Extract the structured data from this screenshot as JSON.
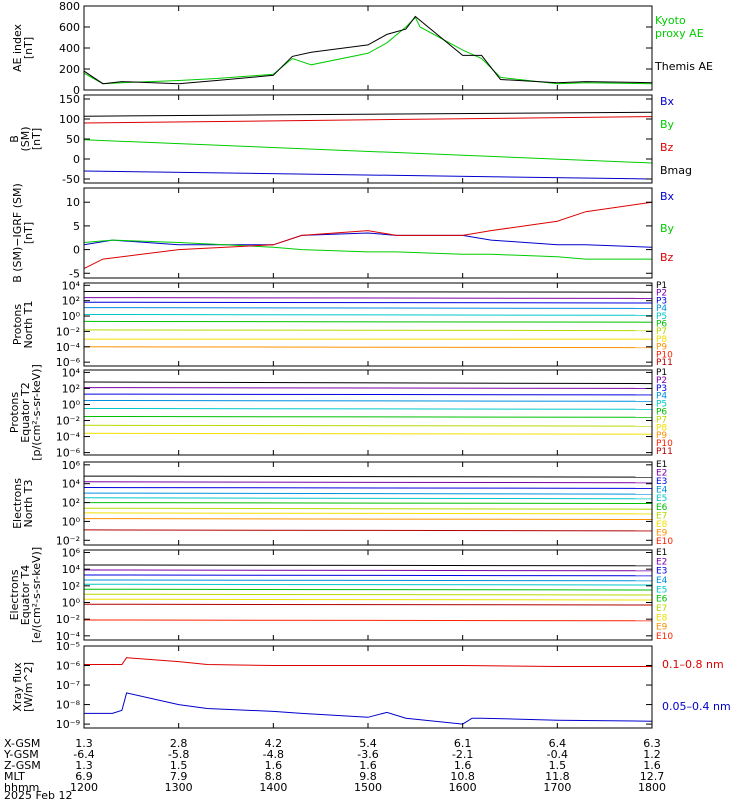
{
  "colors": {
    "black": "#000000",
    "red": "#dd0000",
    "green": "#00cc00",
    "blue": "#0000cc",
    "bands": [
      "#000000",
      "#7a00a8",
      "#0000e0",
      "#0090e0",
      "#00c8c8",
      "#00c000",
      "#b8d800",
      "#f0e000",
      "#ff9000",
      "#ff2000",
      "#b00000"
    ]
  },
  "chart_data": [
    {
      "type": "line",
      "ylabel": [
        "AE index",
        "[nT]"
      ],
      "ylim": [
        0,
        800
      ],
      "yticks": [
        {
          "v": 0,
          "t": "0"
        },
        {
          "v": 200,
          "t": "200"
        },
        {
          "v": 400,
          "t": "400"
        },
        {
          "v": 600,
          "t": "600"
        },
        {
          "v": 800,
          "t": "800"
        }
      ],
      "series": [
        {
          "name": "Kyoto proxy AE",
          "color": "green",
          "x": [
            1200,
            1220,
            1240,
            1300,
            1340,
            1400,
            1420,
            1440,
            1500,
            1520,
            1540,
            1550,
            1555,
            1600,
            1620,
            1640,
            1700,
            1730,
            1800
          ],
          "y": [
            160,
            60,
            70,
            90,
            110,
            150,
            300,
            240,
            350,
            450,
            600,
            690,
            600,
            380,
            300,
            120,
            60,
            70,
            60
          ]
        },
        {
          "name": "Themis AE",
          "color": "black",
          "x": [
            1200,
            1220,
            1240,
            1300,
            1340,
            1400,
            1420,
            1440,
            1500,
            1520,
            1540,
            1550,
            1600,
            1620,
            1640,
            1700,
            1730,
            1800
          ],
          "y": [
            180,
            60,
            80,
            60,
            90,
            140,
            320,
            360,
            430,
            530,
            580,
            700,
            330,
            330,
            100,
            70,
            80,
            70
          ]
        }
      ]
    },
    {
      "type": "line",
      "ylabel": [
        "B",
        "(SM)",
        "[nT]"
      ],
      "ylim": [
        -60,
        160
      ],
      "yticks": [
        {
          "v": -50,
          "t": "-50"
        },
        {
          "v": 0,
          "t": "0"
        },
        {
          "v": 50,
          "t": "50"
        },
        {
          "v": 100,
          "t": "100"
        },
        {
          "v": 150,
          "t": "150"
        }
      ],
      "series": [
        {
          "name": "Bx",
          "color": "blue",
          "x": [
            1200,
            1800
          ],
          "y": [
            -30,
            -50
          ]
        },
        {
          "name": "By",
          "color": "green",
          "x": [
            1200,
            1800
          ],
          "y": [
            48,
            -10
          ]
        },
        {
          "name": "Bz",
          "color": "red",
          "x": [
            1200,
            1800
          ],
          "y": [
            90,
            106
          ]
        },
        {
          "name": "Bmag",
          "color": "black",
          "x": [
            1200,
            1800
          ],
          "y": [
            107,
            117
          ]
        }
      ]
    },
    {
      "type": "line",
      "ylabel": [
        "B (SM)−IGRF (SM)",
        "[nT]"
      ],
      "ylim": [
        -6,
        13
      ],
      "yticks": [
        {
          "v": -5,
          "t": "-5"
        },
        {
          "v": 0,
          "t": "0"
        },
        {
          "v": 5,
          "t": "5"
        },
        {
          "v": 10,
          "t": "10"
        }
      ],
      "series": [
        {
          "name": "Bx",
          "color": "blue",
          "x": [
            1200,
            1230,
            1300,
            1400,
            1430,
            1500,
            1530,
            1600,
            1630,
            1700,
            1730,
            1800
          ],
          "y": [
            1,
            2,
            1,
            1,
            3,
            3.5,
            3,
            3,
            2,
            1,
            1,
            0.5
          ]
        },
        {
          "name": "By",
          "color": "green",
          "x": [
            1200,
            1230,
            1300,
            1400,
            1430,
            1500,
            1530,
            1600,
            1630,
            1700,
            1730,
            1800
          ],
          "y": [
            1.5,
            2,
            1.5,
            0.5,
            0,
            -0.5,
            -0.5,
            -1,
            -1,
            -1.5,
            -2,
            -2
          ]
        },
        {
          "name": "Bz",
          "color": "red",
          "x": [
            1200,
            1220,
            1300,
            1400,
            1430,
            1500,
            1530,
            1600,
            1630,
            1700,
            1730,
            1800
          ],
          "y": [
            -4,
            -2,
            0,
            1,
            3,
            4,
            3,
            3,
            4,
            6,
            8,
            10
          ]
        }
      ]
    },
    {
      "type": "line",
      "log": true,
      "ylabel": [
        "Protons",
        "North T1"
      ],
      "ylim": [
        -6.5,
        4.3
      ],
      "yticks": [
        {
          "v": 4,
          "t": "10⁴"
        },
        {
          "v": 2,
          "t": "10²"
        },
        {
          "v": 0,
          "t": "10⁰"
        },
        {
          "v": -2,
          "t": "10⁻²"
        },
        {
          "v": -4,
          "t": "10⁻⁴"
        },
        {
          "v": -6,
          "t": "10⁻⁶"
        }
      ],
      "series": [
        {
          "name": "P1",
          "color": 0,
          "x": [
            1200,
            1800
          ],
          "y": [
            3.2,
            3.1
          ]
        },
        {
          "name": "P2",
          "color": 1,
          "x": [
            1200,
            1800
          ],
          "y": [
            2.4,
            2.3
          ]
        },
        {
          "name": "P3",
          "color": 2,
          "x": [
            1200,
            1800
          ],
          "y": [
            1.8,
            1.7
          ]
        },
        {
          "name": "P4",
          "color": 3,
          "x": [
            1200,
            1800
          ],
          "y": [
            1.1,
            1.0
          ]
        },
        {
          "name": "P5",
          "color": 4,
          "x": [
            1200,
            1800
          ],
          "y": [
            0.2,
            0.1
          ]
        },
        {
          "name": "P6",
          "color": 5,
          "x": [
            1200,
            1800
          ],
          "y": [
            -0.7,
            -0.8
          ]
        },
        {
          "name": "P7",
          "color": 6,
          "x": [
            1200,
            1800
          ],
          "y": [
            -1.8,
            -1.9
          ]
        },
        {
          "name": "P8",
          "color": 7,
          "x": [
            1200,
            1800
          ],
          "y": [
            -3.0,
            -3.0
          ]
        },
        {
          "name": "P9",
          "color": 8,
          "x": [
            1200,
            1800
          ],
          "y": [
            -4.0,
            -4.1
          ]
        }
      ],
      "legend": [
        "P1",
        "P2",
        "P3",
        "P4",
        "P5",
        "P6",
        "P7",
        "P8",
        "P9",
        "P10",
        "P11"
      ]
    },
    {
      "type": "line",
      "log": true,
      "ylabel": [
        "Protons",
        "Equator T2",
        "[p/(cm²-s-sr-keV)]"
      ],
      "ylim": [
        -6.3,
        4.3
      ],
      "yticks": [
        {
          "v": 4,
          "t": "10⁴"
        },
        {
          "v": 2,
          "t": "10²"
        },
        {
          "v": 0,
          "t": "10⁰"
        },
        {
          "v": -2,
          "t": "10⁻²"
        },
        {
          "v": -4,
          "t": "10⁻⁴"
        },
        {
          "v": -6,
          "t": "10⁻⁶"
        }
      ],
      "series": [
        {
          "name": "P1",
          "color": 0,
          "x": [
            1200,
            1800
          ],
          "y": [
            2.8,
            2.6
          ]
        },
        {
          "name": "P2",
          "color": 1,
          "x": [
            1200,
            1800
          ],
          "y": [
            2.1,
            2.0
          ]
        },
        {
          "name": "P3",
          "color": 2,
          "x": [
            1200,
            1800
          ],
          "y": [
            1.3,
            1.2
          ]
        },
        {
          "name": "P4",
          "color": 3,
          "x": [
            1200,
            1800
          ],
          "y": [
            0.5,
            0.4
          ]
        },
        {
          "name": "P5",
          "color": 4,
          "x": [
            1200,
            1800
          ],
          "y": [
            -0.5,
            -0.6
          ]
        },
        {
          "name": "P6",
          "color": 5,
          "x": [
            1200,
            1800
          ],
          "y": [
            -1.5,
            -1.6
          ]
        },
        {
          "name": "P7",
          "color": 6,
          "x": [
            1200,
            1800
          ],
          "y": [
            -2.6,
            -2.7
          ]
        },
        {
          "name": "P8",
          "color": 7,
          "x": [
            1200,
            1800
          ],
          "y": [
            -3.6,
            -3.7
          ]
        }
      ],
      "legend": [
        "P1",
        "P2",
        "P3",
        "P4",
        "P5",
        "P6",
        "P7",
        "P8",
        "P9",
        "P10",
        "P11"
      ]
    },
    {
      "type": "line",
      "log": true,
      "ylabel": [
        "Electrons",
        "North T3"
      ],
      "ylim": [
        -2.5,
        6.3
      ],
      "yticks": [
        {
          "v": 6,
          "t": "10⁶"
        },
        {
          "v": 4,
          "t": "10⁴"
        },
        {
          "v": 2,
          "t": "10²"
        },
        {
          "v": 0,
          "t": "10⁰"
        },
        {
          "v": -2,
          "t": "10⁻²"
        }
      ],
      "series": [
        {
          "name": "E1",
          "color": 0,
          "x": [
            1200,
            1800
          ],
          "y": [
            4.8,
            4.7
          ]
        },
        {
          "name": "E2",
          "color": 1,
          "x": [
            1200,
            1800
          ],
          "y": [
            4.2,
            4.1
          ]
        },
        {
          "name": "E3",
          "color": 2,
          "x": [
            1200,
            1800
          ],
          "y": [
            3.6,
            3.5
          ]
        },
        {
          "name": "E4",
          "color": 3,
          "x": [
            1200,
            1800
          ],
          "y": [
            3.0,
            2.9
          ]
        },
        {
          "name": "E5",
          "color": 4,
          "x": [
            1200,
            1800
          ],
          "y": [
            2.5,
            2.4
          ]
        },
        {
          "name": "E6",
          "color": 5,
          "x": [
            1200,
            1800
          ],
          "y": [
            2.0,
            1.9
          ]
        },
        {
          "name": "E7",
          "color": 6,
          "x": [
            1200,
            1800
          ],
          "y": [
            1.4,
            1.3
          ]
        },
        {
          "name": "E8",
          "color": 7,
          "x": [
            1200,
            1800
          ],
          "y": [
            0.9,
            0.8
          ]
        },
        {
          "name": "E9",
          "color": 8,
          "x": [
            1200,
            1800
          ],
          "y": [
            0.3,
            0.2
          ]
        },
        {
          "name": "E10",
          "color": 10,
          "x": [
            1200,
            1800
          ],
          "y": [
            -0.9,
            -1.0
          ]
        }
      ],
      "legend": [
        "E1",
        "E2",
        "E3",
        "E4",
        "E5",
        "E6",
        "E7",
        "E8",
        "E9",
        "E10"
      ]
    },
    {
      "type": "line",
      "log": true,
      "ylabel": [
        "Electrons",
        "Equator T4",
        "[e/(cm²-s-sr-keV)]"
      ],
      "ylim": [
        -4.5,
        6.3
      ],
      "yticks": [
        {
          "v": 6,
          "t": "10⁶"
        },
        {
          "v": 4,
          "t": "10⁴"
        },
        {
          "v": 2,
          "t": "10²"
        },
        {
          "v": 0,
          "t": "10⁰"
        },
        {
          "v": -2,
          "t": "10⁻²"
        },
        {
          "v": -4,
          "t": "10⁻⁴"
        }
      ],
      "series": [
        {
          "name": "E1",
          "color": 0,
          "x": [
            1200,
            1800
          ],
          "y": [
            4.5,
            4.4
          ]
        },
        {
          "name": "E2",
          "color": 1,
          "x": [
            1200,
            1800
          ],
          "y": [
            3.9,
            3.8
          ]
        },
        {
          "name": "E3",
          "color": 2,
          "x": [
            1200,
            1800
          ],
          "y": [
            3.3,
            3.2
          ]
        },
        {
          "name": "E4",
          "color": 3,
          "x": [
            1200,
            1800
          ],
          "y": [
            2.7,
            2.6
          ]
        },
        {
          "name": "E5",
          "color": 4,
          "x": [
            1200,
            1800
          ],
          "y": [
            2.2,
            2.1
          ]
        },
        {
          "name": "E6",
          "color": 5,
          "x": [
            1200,
            1800
          ],
          "y": [
            1.6,
            1.5
          ]
        },
        {
          "name": "E7",
          "color": 6,
          "x": [
            1200,
            1800
          ],
          "y": [
            1.0,
            0.9
          ]
        },
        {
          "name": "E8",
          "color": 7,
          "x": [
            1200,
            1800
          ],
          "y": [
            0.4,
            0.3
          ]
        },
        {
          "name": "E9",
          "color": 10,
          "x": [
            1200,
            1800
          ],
          "y": [
            -0.2,
            -0.3
          ]
        },
        {
          "name": "E10",
          "color": 9,
          "x": [
            1200,
            1800
          ],
          "y": [
            -2.1,
            -2.2
          ]
        }
      ],
      "legend": [
        "E1",
        "E2",
        "E3",
        "E4",
        "E5",
        "E6",
        "E7",
        "E8",
        "E9",
        "E10"
      ]
    },
    {
      "type": "line",
      "log": true,
      "ylabel": [
        "Xray flux",
        "[W/m^2]"
      ],
      "ylim": [
        -9.2,
        -5
      ],
      "yticks": [
        {
          "v": -5,
          "t": "10⁻⁵"
        },
        {
          "v": -6,
          "t": "10⁻⁶"
        },
        {
          "v": -7,
          "t": "10⁻⁷"
        },
        {
          "v": -8,
          "t": "10⁻⁸"
        },
        {
          "v": -9,
          "t": "10⁻⁹"
        }
      ],
      "series": [
        {
          "name": "0.1–0.8 nm",
          "color": "red",
          "x": [
            1200,
            1230,
            1240,
            1245,
            1300,
            1330,
            1400,
            1500,
            1600,
            1700,
            1800
          ],
          "y": [
            -5.95,
            -5.95,
            -5.95,
            -5.6,
            -5.8,
            -5.95,
            -6.0,
            -6.0,
            -6.0,
            -6.05,
            -6.05
          ]
        },
        {
          "name": "0.05–0.4 nm",
          "color": "blue",
          "x": [
            1200,
            1230,
            1240,
            1245,
            1300,
            1330,
            1400,
            1430,
            1500,
            1520,
            1540,
            1600,
            1610,
            1620,
            1700,
            1800
          ],
          "y": [
            -8.45,
            -8.45,
            -8.3,
            -7.4,
            -8.0,
            -8.2,
            -8.35,
            -8.45,
            -8.65,
            -8.4,
            -8.7,
            -9.0,
            -8.7,
            -8.7,
            -8.8,
            -8.85
          ]
        }
      ]
    }
  ],
  "legends": {
    "ae": [
      "Kyoto",
      "proxy AE",
      "Themis AE"
    ]
  },
  "ephemeris": {
    "labels": [
      "X-GSM",
      "Y-GSM",
      "Z-GSM",
      "MLT",
      "hhmm",
      "2025 Feb 12"
    ],
    "columns": [
      [
        "1.3",
        "-6.4",
        "1.3",
        "6.9",
        "1200"
      ],
      [
        "2.8",
        "-5.8",
        "1.5",
        "7.9",
        "1300"
      ],
      [
        "4.2",
        "-4.8",
        "1.6",
        "8.8",
        "1400"
      ],
      [
        "5.4",
        "-3.6",
        "1.6",
        "9.8",
        "1500"
      ],
      [
        "6.1",
        "-2.1",
        "1.6",
        "10.8",
        "1600"
      ],
      [
        "6.4",
        "-0.4",
        "1.5",
        "11.8",
        "1700"
      ],
      [
        "6.3",
        "1.2",
        "1.6",
        "12.7",
        "1800"
      ]
    ]
  }
}
